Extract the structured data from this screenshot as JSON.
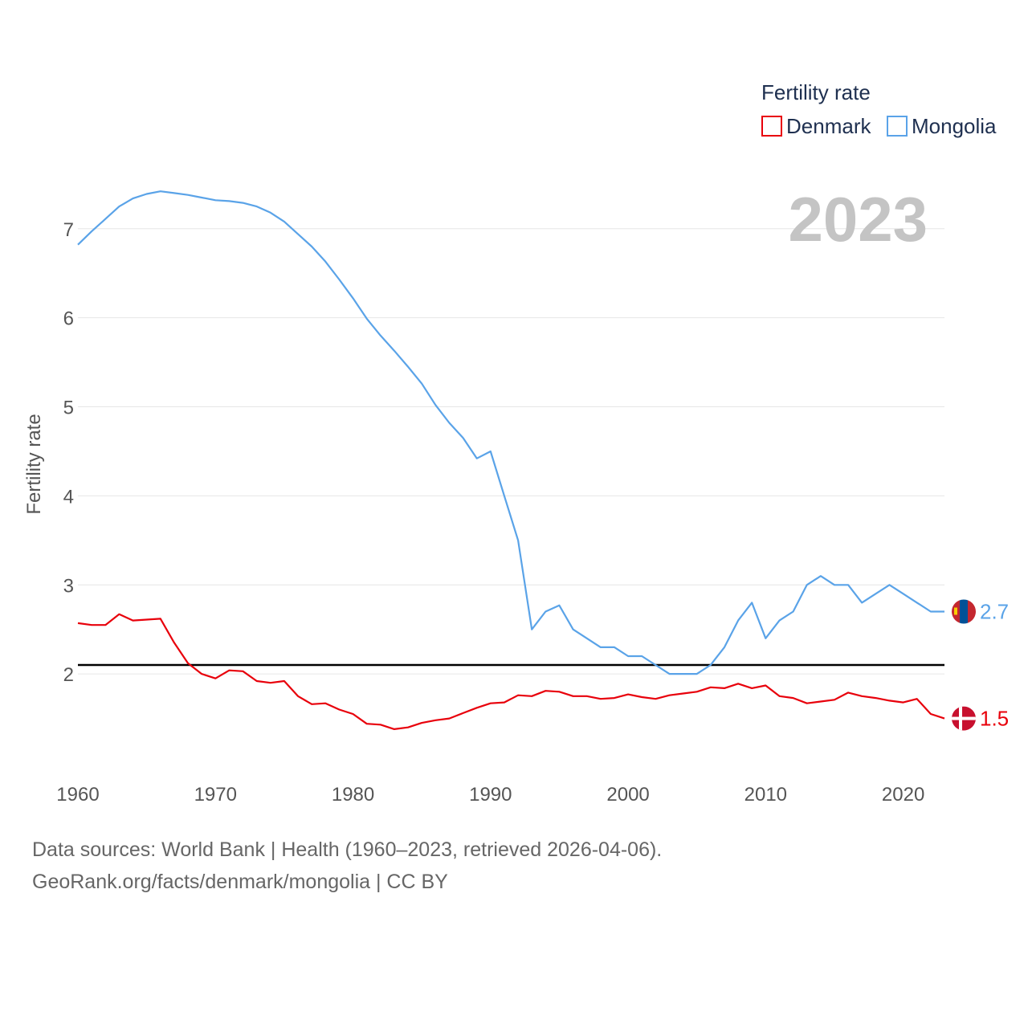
{
  "chart_data": {
    "type": "line",
    "year_label": "2023",
    "legend": {
      "title": "Fertility rate",
      "placement": "top-right"
    },
    "ylabel": "Fertility rate",
    "xlabel": "",
    "xlim": [
      1960,
      2023
    ],
    "ylim": [
      1.0,
      7.9
    ],
    "x_ticks": [
      1960,
      1970,
      1980,
      1990,
      2000,
      2010,
      2020
    ],
    "y_ticks": [
      2,
      3,
      4,
      5,
      6,
      7
    ],
    "reference_line": {
      "value": 2.1,
      "color": "#000000"
    },
    "x": [
      1960,
      1961,
      1962,
      1963,
      1964,
      1965,
      1966,
      1967,
      1968,
      1969,
      1970,
      1971,
      1972,
      1973,
      1974,
      1975,
      1976,
      1977,
      1978,
      1979,
      1980,
      1981,
      1982,
      1983,
      1984,
      1985,
      1986,
      1987,
      1988,
      1989,
      1990,
      1991,
      1992,
      1993,
      1994,
      1995,
      1996,
      1997,
      1998,
      1999,
      2000,
      2001,
      2002,
      2003,
      2004,
      2005,
      2006,
      2007,
      2008,
      2009,
      2010,
      2011,
      2012,
      2013,
      2014,
      2015,
      2016,
      2017,
      2018,
      2019,
      2020,
      2021,
      2022,
      2023
    ],
    "series": [
      {
        "name": "Denmark",
        "color": "#e8000b",
        "end_label": "1.5",
        "flag": "denmark-flag",
        "values": [
          2.57,
          2.55,
          2.55,
          2.67,
          2.6,
          2.61,
          2.62,
          2.35,
          2.12,
          2.0,
          1.95,
          2.04,
          2.03,
          1.92,
          1.9,
          1.92,
          1.75,
          1.66,
          1.67,
          1.6,
          1.55,
          1.44,
          1.43,
          1.38,
          1.4,
          1.45,
          1.48,
          1.5,
          1.56,
          1.62,
          1.67,
          1.68,
          1.76,
          1.75,
          1.81,
          1.8,
          1.75,
          1.75,
          1.72,
          1.73,
          1.77,
          1.74,
          1.72,
          1.76,
          1.78,
          1.8,
          1.85,
          1.84,
          1.89,
          1.84,
          1.87,
          1.75,
          1.73,
          1.67,
          1.69,
          1.71,
          1.79,
          1.75,
          1.73,
          1.7,
          1.68,
          1.72,
          1.55,
          1.5
        ]
      },
      {
        "name": "Mongolia",
        "color": "#5aa3e8",
        "end_label": "2.7",
        "flag": "mongolia-flag",
        "values": [
          6.82,
          6.97,
          7.11,
          7.25,
          7.34,
          7.39,
          7.42,
          7.4,
          7.38,
          7.35,
          7.32,
          7.31,
          7.29,
          7.25,
          7.18,
          7.08,
          6.94,
          6.8,
          6.63,
          6.43,
          6.22,
          5.99,
          5.8,
          5.63,
          5.45,
          5.26,
          5.02,
          4.82,
          4.65,
          4.42,
          4.5,
          4.0,
          3.5,
          2.5,
          2.7,
          2.77,
          2.5,
          2.4,
          2.3,
          2.3,
          2.2,
          2.2,
          2.1,
          2.0,
          2.0,
          2.0,
          2.1,
          2.3,
          2.6,
          2.8,
          2.4,
          2.6,
          2.7,
          3.0,
          3.1,
          3.0,
          3.0,
          2.8,
          2.9,
          3.0,
          2.9,
          2.8,
          2.7,
          2.7
        ]
      }
    ]
  },
  "footer": {
    "line1": "Data sources: World Bank | Health (1960–2023, retrieved 2026-04-06).",
    "line2": "GeoRank.org/facts/denmark/mongolia | CC BY"
  }
}
